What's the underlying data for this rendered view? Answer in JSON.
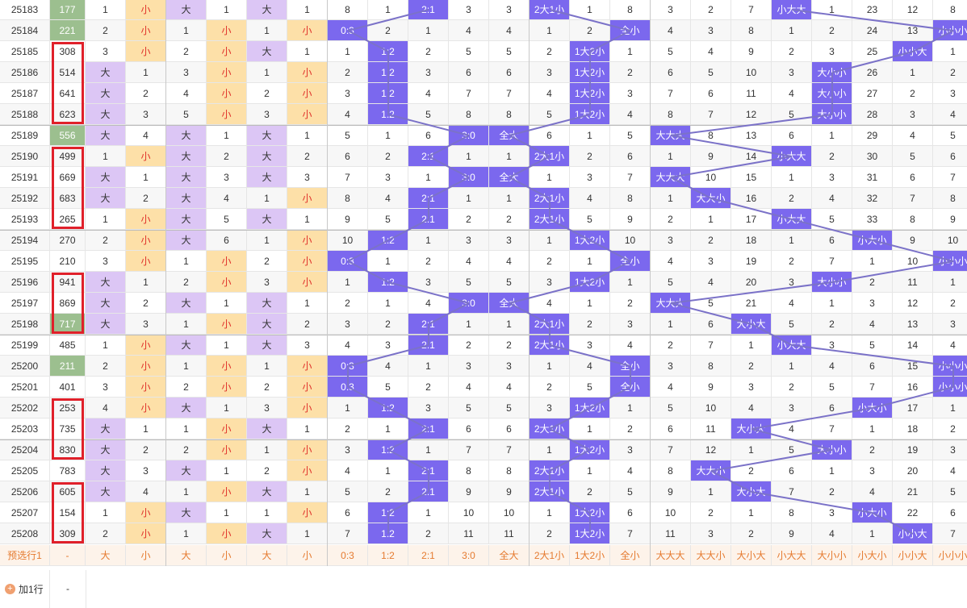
{
  "rows": [
    {
      "issue": "25183",
      "sum": "177",
      "v": [
        "1",
        "小",
        "大",
        "1",
        "大",
        "1",
        "8",
        "1",
        "2:1",
        "3",
        "3",
        "2大1小",
        "1",
        "8",
        "3",
        "2",
        "7",
        "小大大",
        "1",
        "23",
        "12",
        "8"
      ]
    },
    {
      "issue": "25184",
      "sum": "221",
      "v": [
        "2",
        "小",
        "1",
        "小",
        "1",
        "小",
        "0:3",
        "2",
        "1",
        "4",
        "4",
        "1",
        "2",
        "全小",
        "4",
        "3",
        "8",
        "1",
        "2",
        "24",
        "13",
        "小小小"
      ]
    },
    {
      "issue": "25185",
      "sum": "308",
      "v": [
        "3",
        "小",
        "2",
        "小",
        "大",
        "1",
        "1",
        "1:2",
        "2",
        "5",
        "5",
        "2",
        "1大2小",
        "1",
        "5",
        "4",
        "9",
        "2",
        "3",
        "25",
        "小小大",
        "1"
      ]
    },
    {
      "issue": "25186",
      "sum": "514",
      "v": [
        "大",
        "1",
        "3",
        "小",
        "1",
        "小",
        "2",
        "1:2",
        "3",
        "6",
        "6",
        "3",
        "1大2小",
        "2",
        "6",
        "5",
        "10",
        "3",
        "大小小",
        "26",
        "1",
        "2"
      ]
    },
    {
      "issue": "25187",
      "sum": "641",
      "v": [
        "大",
        "2",
        "4",
        "小",
        "2",
        "小",
        "3",
        "1:2",
        "4",
        "7",
        "7",
        "4",
        "1大2小",
        "3",
        "7",
        "6",
        "11",
        "4",
        "大小小",
        "27",
        "2",
        "3"
      ]
    },
    {
      "issue": "25188",
      "sum": "623",
      "v": [
        "大",
        "3",
        "5",
        "小",
        "3",
        "小",
        "4",
        "1:2",
        "5",
        "8",
        "8",
        "5",
        "1大2小",
        "4",
        "8",
        "7",
        "12",
        "5",
        "大小小",
        "28",
        "3",
        "4"
      ]
    },
    {
      "issue": "25189",
      "sum": "556",
      "v": [
        "大",
        "4",
        "大",
        "1",
        "大",
        "1",
        "5",
        "1",
        "6",
        "3:0",
        "全大",
        "6",
        "1",
        "5",
        "大大大",
        "8",
        "13",
        "6",
        "1",
        "29",
        "4",
        "5"
      ]
    },
    {
      "issue": "25190",
      "sum": "499",
      "v": [
        "1",
        "小",
        "大",
        "2",
        "大",
        "2",
        "6",
        "2",
        "2:1",
        "1",
        "1",
        "2大1小",
        "2",
        "6",
        "1",
        "9",
        "14",
        "小大大",
        "2",
        "30",
        "5",
        "6"
      ]
    },
    {
      "issue": "25191",
      "sum": "669",
      "v": [
        "大",
        "1",
        "大",
        "3",
        "大",
        "3",
        "7",
        "3",
        "1",
        "3:0",
        "全大",
        "1",
        "3",
        "7",
        "大大大",
        "10",
        "15",
        "1",
        "3",
        "31",
        "6",
        "7"
      ]
    },
    {
      "issue": "25192",
      "sum": "683",
      "v": [
        "大",
        "2",
        "大",
        "4",
        "1",
        "小",
        "8",
        "4",
        "2:1",
        "1",
        "1",
        "2大1小",
        "4",
        "8",
        "1",
        "大大小",
        "16",
        "2",
        "4",
        "32",
        "7",
        "8"
      ]
    },
    {
      "issue": "25193",
      "sum": "265",
      "v": [
        "1",
        "小",
        "大",
        "5",
        "大",
        "1",
        "9",
        "5",
        "2:1",
        "2",
        "2",
        "2大1小",
        "5",
        "9",
        "2",
        "1",
        "17",
        "小大大",
        "5",
        "33",
        "8",
        "9"
      ]
    },
    {
      "issue": "25194",
      "sum": "270",
      "v": [
        "2",
        "小",
        "大",
        "6",
        "1",
        "小",
        "10",
        "1:2",
        "1",
        "3",
        "3",
        "1",
        "1大2小",
        "10",
        "3",
        "2",
        "18",
        "1",
        "6",
        "小大小",
        "9",
        "10"
      ]
    },
    {
      "issue": "25195",
      "sum": "210",
      "v": [
        "3",
        "小",
        "1",
        "小",
        "2",
        "小",
        "0:3",
        "1",
        "2",
        "4",
        "4",
        "2",
        "1",
        "全小",
        "4",
        "3",
        "19",
        "2",
        "7",
        "1",
        "10",
        "小小小"
      ]
    },
    {
      "issue": "25196",
      "sum": "941",
      "v": [
        "大",
        "1",
        "2",
        "小",
        "3",
        "小",
        "1",
        "1:2",
        "3",
        "5",
        "5",
        "3",
        "1大2小",
        "1",
        "5",
        "4",
        "20",
        "3",
        "大小小",
        "2",
        "11",
        "1"
      ]
    },
    {
      "issue": "25197",
      "sum": "869",
      "v": [
        "大",
        "2",
        "大",
        "1",
        "大",
        "1",
        "2",
        "1",
        "4",
        "3:0",
        "全大",
        "4",
        "1",
        "2",
        "大大大",
        "5",
        "21",
        "4",
        "1",
        "3",
        "12",
        "2"
      ]
    },
    {
      "issue": "25198",
      "sum": "717",
      "v": [
        "大",
        "3",
        "1",
        "小",
        "大",
        "2",
        "3",
        "2",
        "2:1",
        "1",
        "1",
        "2大1小",
        "2",
        "3",
        "1",
        "6",
        "大小大",
        "5",
        "2",
        "4",
        "13",
        "3"
      ]
    },
    {
      "issue": "25199",
      "sum": "485",
      "v": [
        "1",
        "小",
        "大",
        "1",
        "大",
        "3",
        "4",
        "3",
        "2:1",
        "2",
        "2",
        "2大1小",
        "3",
        "4",
        "2",
        "7",
        "1",
        "小大大",
        "3",
        "5",
        "14",
        "4"
      ]
    },
    {
      "issue": "25200",
      "sum": "211",
      "v": [
        "2",
        "小",
        "1",
        "小",
        "1",
        "小",
        "0:3",
        "4",
        "1",
        "3",
        "3",
        "1",
        "4",
        "全小",
        "3",
        "8",
        "2",
        "1",
        "4",
        "6",
        "15",
        "小小小"
      ]
    },
    {
      "issue": "25201",
      "sum": "401",
      "v": [
        "3",
        "小",
        "2",
        "小",
        "2",
        "小",
        "0:3",
        "5",
        "2",
        "4",
        "4",
        "2",
        "5",
        "全小",
        "4",
        "9",
        "3",
        "2",
        "5",
        "7",
        "16",
        "小小小"
      ]
    },
    {
      "issue": "25202",
      "sum": "253",
      "v": [
        "4",
        "小",
        "大",
        "1",
        "3",
        "小",
        "1",
        "1:2",
        "3",
        "5",
        "5",
        "3",
        "1大2小",
        "1",
        "5",
        "10",
        "4",
        "3",
        "6",
        "小大小",
        "17",
        "1"
      ]
    },
    {
      "issue": "25203",
      "sum": "735",
      "v": [
        "大",
        "1",
        "1",
        "小",
        "大",
        "1",
        "2",
        "1",
        "2:1",
        "6",
        "6",
        "2大1小",
        "1",
        "2",
        "6",
        "11",
        "大小大",
        "4",
        "7",
        "1",
        "18",
        "2"
      ]
    },
    {
      "issue": "25204",
      "sum": "830",
      "v": [
        "大",
        "2",
        "2",
        "小",
        "1",
        "小",
        "3",
        "1:2",
        "1",
        "7",
        "7",
        "1",
        "1大2小",
        "3",
        "7",
        "12",
        "1",
        "5",
        "大小小",
        "2",
        "19",
        "3"
      ]
    },
    {
      "issue": "25205",
      "sum": "783",
      "v": [
        "大",
        "3",
        "大",
        "1",
        "2",
        "小",
        "4",
        "1",
        "2:1",
        "8",
        "8",
        "2大1小",
        "1",
        "4",
        "8",
        "大大小",
        "2",
        "6",
        "1",
        "3",
        "20",
        "4"
      ]
    },
    {
      "issue": "25206",
      "sum": "605",
      "v": [
        "大",
        "4",
        "1",
        "小",
        "大",
        "1",
        "5",
        "2",
        "2:1",
        "9",
        "9",
        "2大1小",
        "2",
        "5",
        "9",
        "1",
        "大小大",
        "7",
        "2",
        "4",
        "21",
        "5"
      ]
    },
    {
      "issue": "25207",
      "sum": "154",
      "v": [
        "1",
        "小",
        "大",
        "1",
        "1",
        "小",
        "6",
        "1:2",
        "1",
        "10",
        "10",
        "1",
        "1大2小",
        "6",
        "10",
        "2",
        "1",
        "8",
        "3",
        "小大小",
        "22",
        "6"
      ]
    },
    {
      "issue": "25208",
      "sum": "309",
      "v": [
        "2",
        "小",
        "1",
        "小",
        "大",
        "1",
        "7",
        "1:2",
        "2",
        "11",
        "11",
        "2",
        "1大2小",
        "7",
        "11",
        "3",
        "2",
        "9",
        "4",
        "1",
        "小小大",
        "7"
      ]
    }
  ],
  "preselect": {
    "label": "预选行1",
    "sum": "-",
    "v": [
      "大",
      "小",
      "大",
      "小",
      "大",
      "小",
      "0:3",
      "1:2",
      "2:1",
      "3:0",
      "全大",
      "2大1小",
      "1大2小",
      "全小",
      "大大大",
      "大大小",
      "大小大",
      "小大大",
      "大小小",
      "小大小",
      "小小大",
      "小小小"
    ]
  },
  "add_row": {
    "label": "加1行",
    "dash": "-"
  },
  "colors": {
    "big": "#dcc6f5",
    "small": "#fde0a8",
    "hit": "#7b68ee",
    "sum_green": "#9cbf8f",
    "red_box": "#e0202a",
    "line": "#7b72c8"
  }
}
